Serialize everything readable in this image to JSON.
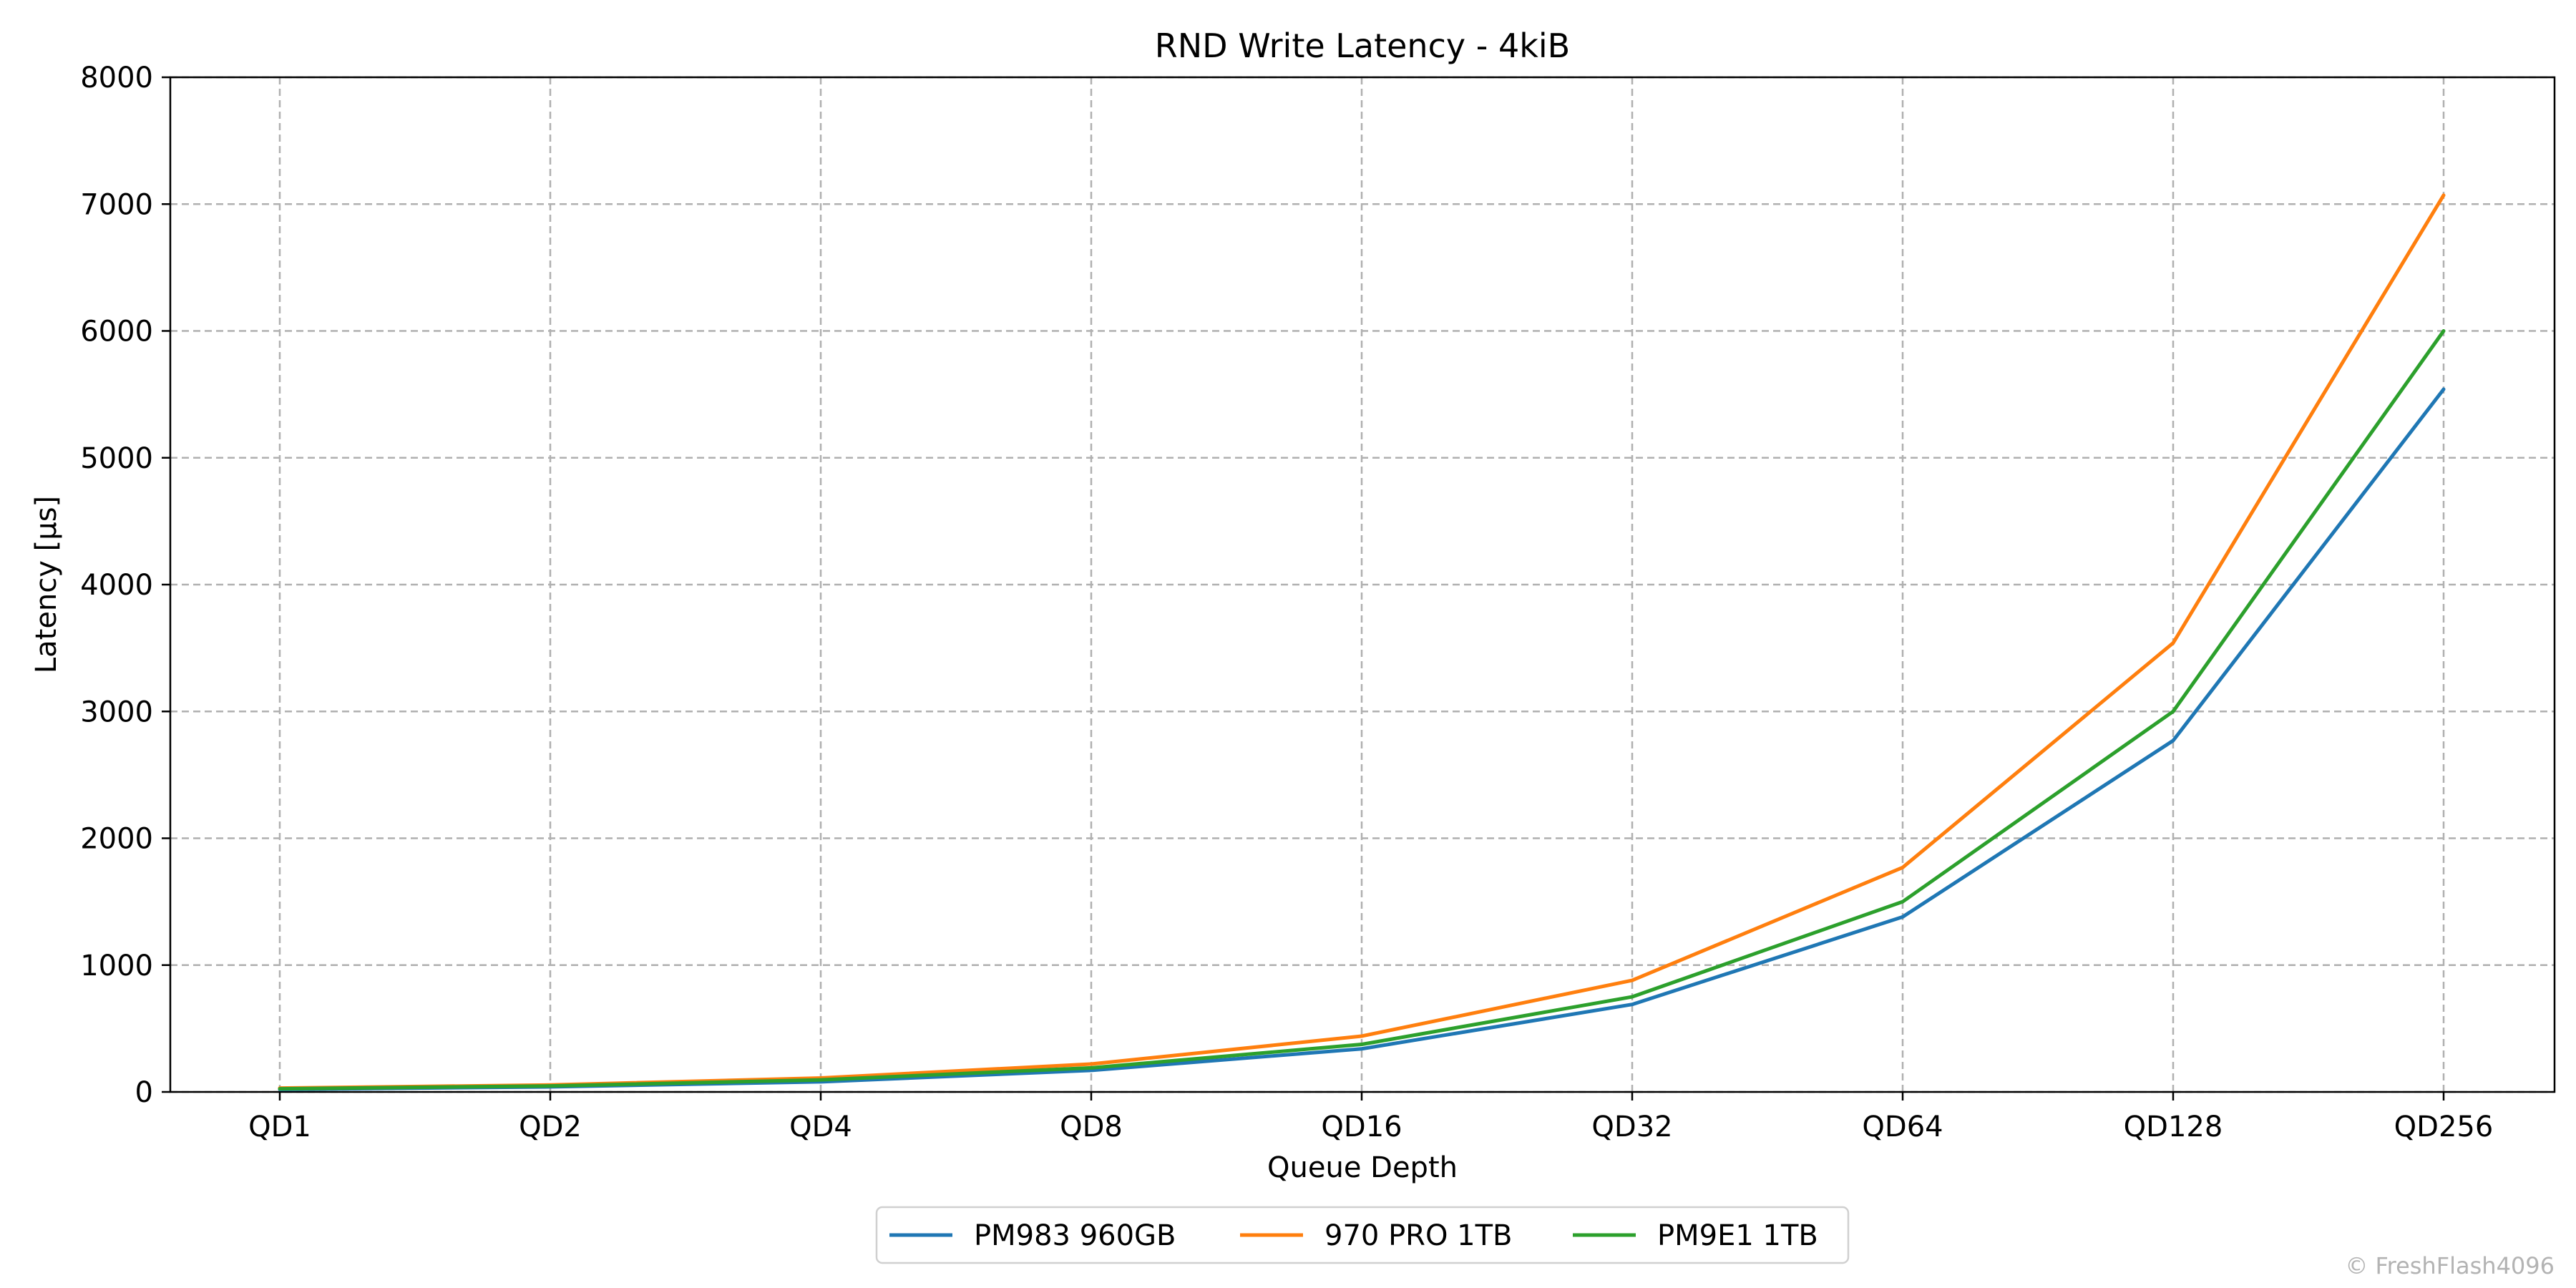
{
  "chart_data": {
    "type": "line",
    "title": "RND Write Latency - 4kiB",
    "xlabel": "Queue Depth",
    "ylabel": "Latency [µs]",
    "categories": [
      "QD1",
      "QD2",
      "QD4",
      "QD8",
      "QD16",
      "QD32",
      "QD64",
      "QD128",
      "QD256"
    ],
    "ylim": [
      0,
      8000
    ],
    "yticks": [
      0,
      1000,
      2000,
      3000,
      4000,
      5000,
      6000,
      7000,
      8000
    ],
    "grid": true,
    "legend_position": "bottom-center",
    "series": [
      {
        "name": "PM983 960GB",
        "color": "#1f77b4",
        "values": [
          20,
          40,
          80,
          170,
          340,
          690,
          1380,
          2770,
          5540
        ]
      },
      {
        "name": "970 PRO 1TB",
        "color": "#ff7f0e",
        "values": [
          30,
          55,
          110,
          220,
          440,
          880,
          1770,
          3540,
          7070
        ]
      },
      {
        "name": "PM9E1 1TB",
        "color": "#2ca02c",
        "values": [
          25,
          47,
          95,
          190,
          375,
          750,
          1500,
          3000,
          6000
        ]
      }
    ]
  },
  "watermark": "© FreshFlash4096"
}
